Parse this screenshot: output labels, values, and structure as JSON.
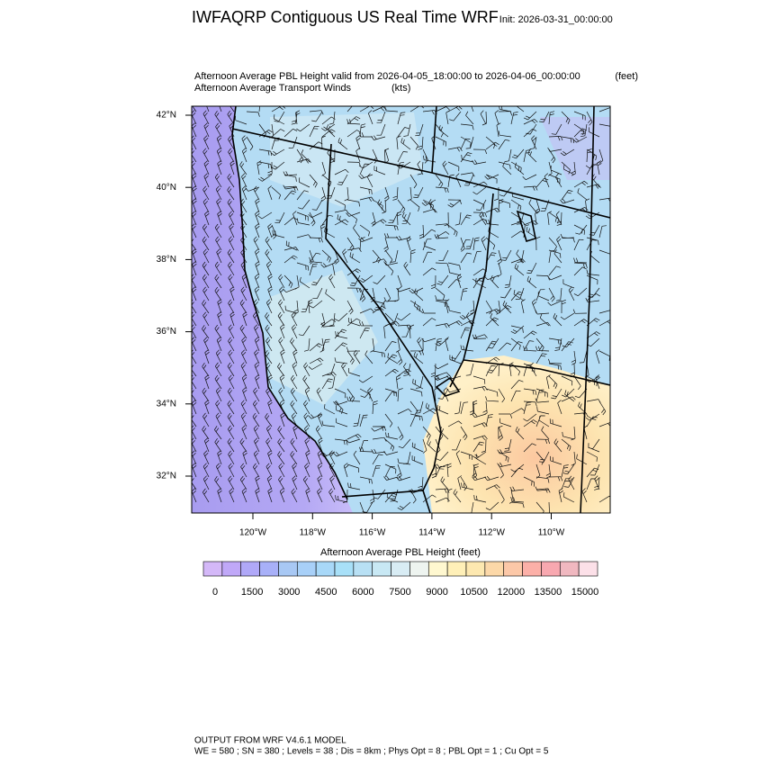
{
  "title": "IWFAQRP Contiguous US Real Time WRF",
  "init": "Init: 2026-03-31_00:00:00",
  "field_title": "Afternoon Average PBL Height valid from 2026-04-05_18:00:00 to 2026-04-06_00:00:00",
  "field_units": "(feet)",
  "wind_title": "Afternoon Average Transport Winds",
  "wind_units": "(kts)",
  "lat_labels": [
    "42°N",
    "40°N",
    "38°N",
    "36°N",
    "34°N",
    "32°N"
  ],
  "lon_labels": [
    "120°W",
    "118°W",
    "116°W",
    "114°W",
    "112°W",
    "110°W"
  ],
  "colorbar": {
    "title": "Afternoon Average PBL Height  (feet)",
    "labels": [
      "0",
      "1500",
      "3000",
      "4500",
      "6000",
      "7500",
      "9000",
      "10500",
      "12000",
      "13500",
      "15000"
    ],
    "colors": [
      "#d4b8f8",
      "#c0a8f8",
      "#b0a8f8",
      "#a8b0f8",
      "#a8c8f4",
      "#a8d0f8",
      "#a8d8f8",
      "#a8e0f8",
      "#b8e0f4",
      "#c8e8f4",
      "#d8ecf4",
      "#eef4f0",
      "#fff8d0",
      "#fff0b8",
      "#fde8b0",
      "#fcd8a8",
      "#fcc8a8",
      "#fcb0a8",
      "#f8a8b0",
      "#f0b8c0",
      "#fce0e8"
    ]
  },
  "footer": [
    "OUTPUT FROM WRF V4.6.1 MODEL",
    "WE = 580 ; SN = 380 ; Levels = 38 ; Dis = 8km ; Phys Opt = 8 ; PBL Opt = 1 ; Cu Opt = 5"
  ]
}
